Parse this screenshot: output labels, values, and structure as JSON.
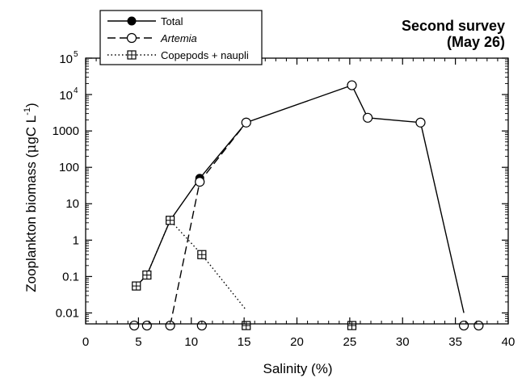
{
  "chart_data": {
    "type": "scatter",
    "title_line1": "Second survey",
    "title_line2": "(May 26)",
    "xlabel": "Salinity (%)",
    "ylabel_prefix": "Zooplankton biomass  (",
    "ylabel_mu": "μ",
    "ylabel_unit": "gC L",
    "ylabel_exp": "-1",
    "ylabel_suffix": ")",
    "xlim": [
      0,
      40
    ],
    "ylim": [
      0.005,
      100000
    ],
    "y_scale": "log",
    "x_ticks": [
      {
        "value": 0,
        "label": "0"
      },
      {
        "value": 5,
        "label": "5"
      },
      {
        "value": 10,
        "label": "10"
      },
      {
        "value": 15,
        "label": "15"
      },
      {
        "value": 20,
        "label": "20"
      },
      {
        "value": 25,
        "label": "25"
      },
      {
        "value": 30,
        "label": "30"
      },
      {
        "value": 35,
        "label": "35"
      },
      {
        "value": 40,
        "label": "40"
      }
    ],
    "y_ticks": [
      {
        "value": 0.01,
        "label": "0.01"
      },
      {
        "value": 0.1,
        "label": "0.1"
      },
      {
        "value": 1,
        "label": "1"
      },
      {
        "value": 10,
        "label": "10"
      },
      {
        "value": 100,
        "label": "100"
      },
      {
        "value": 1000,
        "label": "1000"
      },
      {
        "value": 10000,
        "label": "10",
        "exp": "4"
      },
      {
        "value": 100000,
        "label": "10",
        "exp": "5"
      }
    ],
    "legend_position": "top-left",
    "series": [
      {
        "name": "Total",
        "line": "solid",
        "marker": "filled-circle",
        "x": [
          4.8,
          5.8,
          8.0,
          10.8,
          15.2,
          25.2,
          26.7,
          31.7,
          35.8
        ],
        "y": [
          0.055,
          0.11,
          3.5,
          50,
          1700,
          18000,
          2300,
          1700,
          0.01
        ]
      },
      {
        "name": "Artemia",
        "line": "dashed",
        "marker": "open-circle",
        "x": [
          8.0,
          10.8,
          15.2
        ],
        "y": [
          0.0045,
          40,
          1700
        ]
      },
      {
        "name": "Copepods + naupli",
        "line": "dotted",
        "marker": "boxed-cross",
        "x": [
          4.8,
          5.8,
          8.0,
          11.0,
          15.2
        ],
        "y": [
          0.055,
          0.11,
          3.5,
          0.4,
          0.012
        ]
      }
    ],
    "markers": [
      {
        "shape": "filled-circle",
        "x": 10.8,
        "y": 50
      },
      {
        "shape": "open-circle",
        "x": 10.8,
        "y": 40
      },
      {
        "shape": "open-circle",
        "x": 15.2,
        "y": 1700
      },
      {
        "shape": "open-circle",
        "x": 25.2,
        "y": 18000
      },
      {
        "shape": "open-circle",
        "x": 26.7,
        "y": 2300
      },
      {
        "shape": "open-circle",
        "x": 31.7,
        "y": 1700
      },
      {
        "shape": "boxed-cross",
        "x": 4.8,
        "y": 0.055
      },
      {
        "shape": "boxed-cross",
        "x": 5.8,
        "y": 0.11
      },
      {
        "shape": "boxed-cross",
        "x": 8.0,
        "y": 3.5
      },
      {
        "shape": "boxed-cross",
        "x": 11.0,
        "y": 0.4
      },
      {
        "shape": "open-circle",
        "x": 4.6,
        "y": 0.0045
      },
      {
        "shape": "open-circle",
        "x": 5.8,
        "y": 0.0045
      },
      {
        "shape": "open-circle",
        "x": 8.0,
        "y": 0.0045
      },
      {
        "shape": "open-circle",
        "x": 11.0,
        "y": 0.0045
      },
      {
        "shape": "boxed-cross",
        "x": 15.2,
        "y": 0.0045
      },
      {
        "shape": "boxed-cross",
        "x": 25.2,
        "y": 0.0045
      },
      {
        "shape": "open-circle",
        "x": 35.8,
        "y": 0.0045
      },
      {
        "shape": "open-circle",
        "x": 37.2,
        "y": 0.0045
      }
    ]
  }
}
